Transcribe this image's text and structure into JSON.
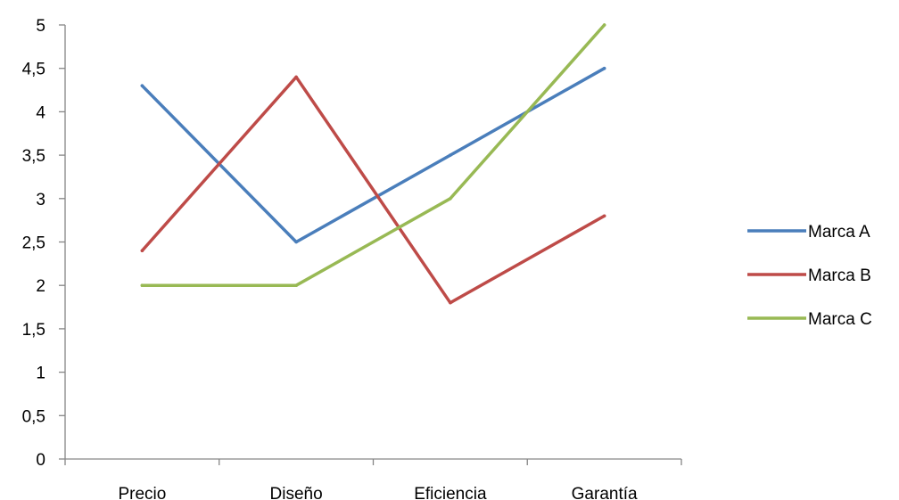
{
  "chart_data": {
    "type": "line",
    "title": "",
    "xlabel": "",
    "ylabel": "",
    "categories": [
      "Precio",
      "Diseño",
      "Eficiencia",
      "Garantía"
    ],
    "ylim": [
      0,
      5
    ],
    "ytick_labels": [
      "0",
      "0,5",
      "1",
      "1,5",
      "2",
      "2,5",
      "3",
      "3,5",
      "4",
      "4,5",
      "5"
    ],
    "grid": false,
    "legend_position": "right",
    "series": [
      {
        "name": "Marca A",
        "color": "#4A7EBB",
        "values": [
          4.3,
          2.5,
          3.5,
          4.5
        ]
      },
      {
        "name": "Marca B",
        "color": "#BE4B48",
        "values": [
          2.4,
          4.4,
          1.8,
          2.8
        ]
      },
      {
        "name": "Marca C",
        "color": "#98B954",
        "values": [
          2.0,
          2.0,
          3.0,
          5.0
        ]
      }
    ]
  }
}
